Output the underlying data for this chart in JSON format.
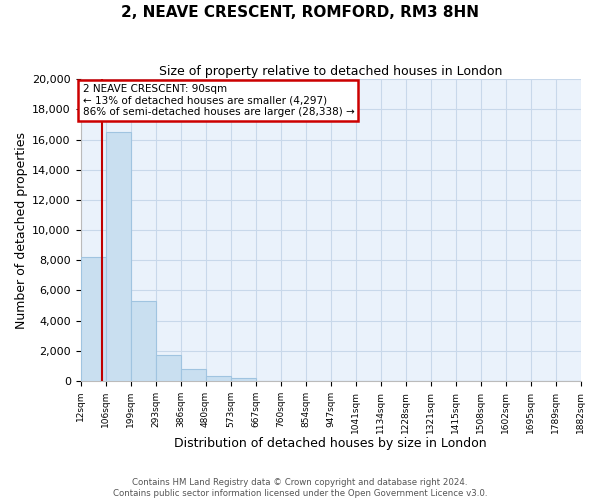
{
  "title": "2, NEAVE CRESCENT, ROMFORD, RM3 8HN",
  "subtitle": "Size of property relative to detached houses in London",
  "xlabel": "Distribution of detached houses by size in London",
  "ylabel": "Number of detached properties",
  "bar_values": [
    8200,
    16500,
    5300,
    1750,
    800,
    300,
    200,
    0,
    0,
    0,
    0,
    0,
    0,
    0,
    0,
    0,
    0,
    0,
    0,
    0
  ],
  "bar_labels": [
    "12sqm",
    "106sqm",
    "199sqm",
    "293sqm",
    "386sqm",
    "480sqm",
    "573sqm",
    "667sqm",
    "760sqm",
    "854sqm",
    "947sqm",
    "1041sqm",
    "1134sqm",
    "1228sqm",
    "1321sqm",
    "1415sqm",
    "1508sqm",
    "1602sqm",
    "1695sqm",
    "1789sqm",
    "1882sqm"
  ],
  "bar_color": "#c9dff0",
  "bar_edge_color": "#a0c4e0",
  "plot_bg_color": "#eaf2fb",
  "property_line_color": "#c00000",
  "annotation_title": "2 NEAVE CRESCENT: 90sqm",
  "annotation_line1": "← 13% of detached houses are smaller (4,297)",
  "annotation_line2": "86% of semi-detached houses are larger (28,338) →",
  "annotation_box_color": "#ffffff",
  "annotation_box_edge_color": "#cc0000",
  "ylim": [
    0,
    20000
  ],
  "yticks": [
    0,
    2000,
    4000,
    6000,
    8000,
    10000,
    12000,
    14000,
    16000,
    18000,
    20000
  ],
  "footer_line1": "Contains HM Land Registry data © Crown copyright and database right 2024.",
  "footer_line2": "Contains public sector information licensed under the Open Government Licence v3.0.",
  "bg_color": "#ffffff",
  "grid_color": "#c8d8ea"
}
